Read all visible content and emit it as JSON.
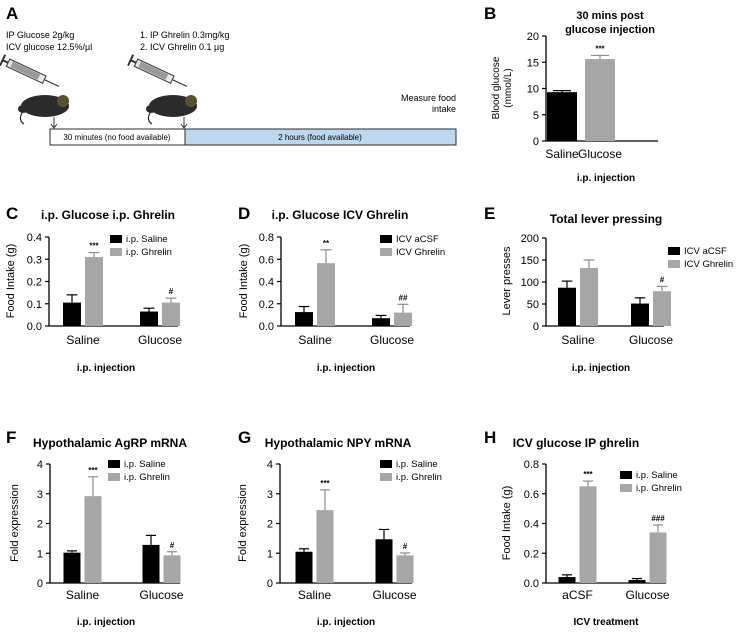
{
  "colors": {
    "black_bar": "#000000",
    "grey_bar": "#a6a6a6",
    "timeline_fill": "#bcd7ee",
    "timeline_border": "#2b2b2b",
    "mouse": "#2b2b2b",
    "mouse_head": "#5b5030"
  },
  "panelA": {
    "letter": "A",
    "protocol1_line1": "IP Glucose 2g/kg",
    "protocol1_line2": "ICV glucose 12.5%/µl",
    "protocol2_line1": "1. IP Ghrelin  0.3mg/kg",
    "protocol2_line2": "2. ICV Ghrelin 0.1 µg",
    "measure_line1": "Measure food",
    "measure_line2": "intake",
    "segment1_label": "30 minutes (no food available)",
    "segment2_label": "2 hours (food available)"
  },
  "chart_data": [
    {
      "id": "B",
      "letter": "B",
      "type": "bar",
      "title_lines": [
        "30 mins post",
        "glucose injection"
      ],
      "ylabel_lines": [
        "Blood glucose",
        "(mmol/L)"
      ],
      "xlabel": "i.p. injection",
      "ylim": [
        0,
        20
      ],
      "yticks": [
        "0",
        "5",
        "10",
        "15",
        "20"
      ],
      "ytick_values": [
        0,
        5,
        10,
        15,
        20
      ],
      "categories": [
        "Saline",
        "Glucose"
      ],
      "series": [
        {
          "name": "",
          "color": "mixed",
          "values": [
            9.3,
            15.6
          ],
          "errors": [
            0.3,
            0.7
          ],
          "bar_colors": [
            "black",
            "grey"
          ],
          "annotations": [
            "",
            "***"
          ]
        }
      ],
      "legend": []
    },
    {
      "id": "C",
      "letter": "C",
      "type": "bar",
      "title_lines": [
        "i.p. Glucose i.p. Ghrelin"
      ],
      "ylabel_lines": [
        "Food  Intake (g)"
      ],
      "xlabel": "i.p. injection",
      "ylim": [
        0,
        0.4
      ],
      "yticks": [
        "0.0",
        "0.1",
        "0.2",
        "0.3",
        "0.4"
      ],
      "ytick_values": [
        0,
        0.1,
        0.2,
        0.3,
        0.4
      ],
      "categories": [
        "Saline",
        "Glucose"
      ],
      "series": [
        {
          "name": "i.p. Saline",
          "color": "black",
          "values": [
            0.105,
            0.065
          ],
          "errors": [
            0.035,
            0.015
          ],
          "annotations": [
            "",
            ""
          ]
        },
        {
          "name": "i.p. Ghrelin",
          "color": "grey",
          "values": [
            0.31,
            0.105
          ],
          "errors": [
            0.02,
            0.02
          ],
          "annotations": [
            "***",
            "#"
          ]
        }
      ],
      "legend": [
        "i.p. Saline",
        "i.p. Ghrelin"
      ]
    },
    {
      "id": "D",
      "letter": "D",
      "type": "bar",
      "title_lines": [
        "i.p. Glucose ICV Ghrelin"
      ],
      "ylabel_lines": [
        "Food Intake (g)"
      ],
      "xlabel": "i.p. injection",
      "ylim": [
        0,
        0.8
      ],
      "yticks": [
        "0.0",
        "0.2",
        "0.4",
        "0.6",
        "0.8"
      ],
      "ytick_values": [
        0,
        0.2,
        0.4,
        0.6,
        0.8
      ],
      "categories": [
        "Saline",
        "Glucose"
      ],
      "series": [
        {
          "name": "ICV aCSF",
          "color": "black",
          "values": [
            0.125,
            0.07
          ],
          "errors": [
            0.05,
            0.025
          ],
          "annotations": [
            "",
            ""
          ]
        },
        {
          "name": "ICV Ghrelin",
          "color": "grey",
          "values": [
            0.565,
            0.12
          ],
          "errors": [
            0.12,
            0.075
          ],
          "annotations": [
            "**",
            "##"
          ]
        }
      ],
      "legend": [
        "ICV aCSF",
        "ICV Ghrelin"
      ]
    },
    {
      "id": "E",
      "letter": "E",
      "type": "bar",
      "title_lines": [
        "Total lever pressing"
      ],
      "ylabel_lines": [
        "Lever presses"
      ],
      "xlabel": "i.p. injection",
      "ylim": [
        0,
        200
      ],
      "yticks": [
        "0",
        "50",
        "100",
        "150",
        "200"
      ],
      "ytick_values": [
        0,
        50,
        100,
        150,
        200
      ],
      "categories": [
        "Saline",
        "Glucose"
      ],
      "series": [
        {
          "name": "ICV aCSF",
          "color": "black",
          "values": [
            87,
            51
          ],
          "errors": [
            15,
            13
          ],
          "annotations": [
            "",
            ""
          ]
        },
        {
          "name": "ICV Ghrelin",
          "color": "grey",
          "values": [
            132,
            79
          ],
          "errors": [
            18,
            11
          ],
          "annotations": [
            "",
            "#"
          ]
        }
      ],
      "legend": [
        "ICV aCSF",
        "ICV Ghrelin"
      ]
    },
    {
      "id": "F",
      "letter": "F",
      "type": "bar",
      "title_lines": [
        "Hypothalamic AgRP mRNA"
      ],
      "ylabel_lines": [
        "Fold expression"
      ],
      "xlabel": "i.p. injection",
      "ylim": [
        0,
        4
      ],
      "yticks": [
        "0",
        "1",
        "2",
        "3",
        "4"
      ],
      "ytick_values": [
        0,
        1,
        2,
        3,
        4
      ],
      "categories": [
        "Saline",
        "Glucose"
      ],
      "series": [
        {
          "name": "i.p. Saline",
          "color": "black",
          "values": [
            1.02,
            1.28
          ],
          "errors": [
            0.06,
            0.32
          ],
          "annotations": [
            "",
            ""
          ]
        },
        {
          "name": "i.p. Ghrelin",
          "color": "grey",
          "values": [
            2.92,
            0.93
          ],
          "errors": [
            0.65,
            0.12
          ],
          "annotations": [
            "***",
            "#"
          ]
        }
      ],
      "legend": [
        "i.p. Saline",
        "i.p. Ghrelin"
      ]
    },
    {
      "id": "G",
      "letter": "G",
      "type": "bar",
      "title_lines": [
        "Hypothalamic NPY mRNA"
      ],
      "ylabel_lines": [
        "Fold expression"
      ],
      "xlabel": "i.p. injection",
      "ylim": [
        0,
        4
      ],
      "yticks": [
        "0",
        "1",
        "2",
        "3",
        "4"
      ],
      "ytick_values": [
        0,
        1,
        2,
        3,
        4
      ],
      "categories": [
        "Saline",
        "Glucose"
      ],
      "series": [
        {
          "name": "i.p. Saline",
          "color": "black",
          "values": [
            1.05,
            1.47
          ],
          "errors": [
            0.1,
            0.33
          ],
          "annotations": [
            "",
            ""
          ]
        },
        {
          "name": "i.p. Ghrelin",
          "color": "grey",
          "values": [
            2.45,
            0.93
          ],
          "errors": [
            0.68,
            0.08
          ],
          "annotations": [
            "***",
            "#"
          ]
        }
      ],
      "legend": [
        "i.p. Saline",
        "i.p. Ghrelin"
      ]
    },
    {
      "id": "H",
      "letter": "H",
      "type": "bar",
      "title_lines": [
        "ICV glucose IP ghrelin"
      ],
      "ylabel_lines": [
        "Food Intake (g)"
      ],
      "xlabel": "ICV treatment",
      "ylim": [
        0,
        0.8
      ],
      "yticks": [
        "0.0",
        "0.2",
        "0.4",
        "0.6",
        "0.8"
      ],
      "ytick_values": [
        0,
        0.2,
        0.4,
        0.6,
        0.8
      ],
      "categories": [
        "aCSF",
        "Glucose"
      ],
      "series": [
        {
          "name": "i.p. Saline",
          "color": "black",
          "values": [
            0.04,
            0.02
          ],
          "errors": [
            0.015,
            0.01
          ],
          "annotations": [
            "",
            ""
          ]
        },
        {
          "name": "i.p. Ghrelin",
          "color": "grey",
          "values": [
            0.65,
            0.34
          ],
          "errors": [
            0.035,
            0.05
          ],
          "annotations": [
            "***",
            "###"
          ]
        }
      ],
      "legend": [
        "i.p. Saline",
        "i.p. Ghrelin"
      ]
    }
  ]
}
